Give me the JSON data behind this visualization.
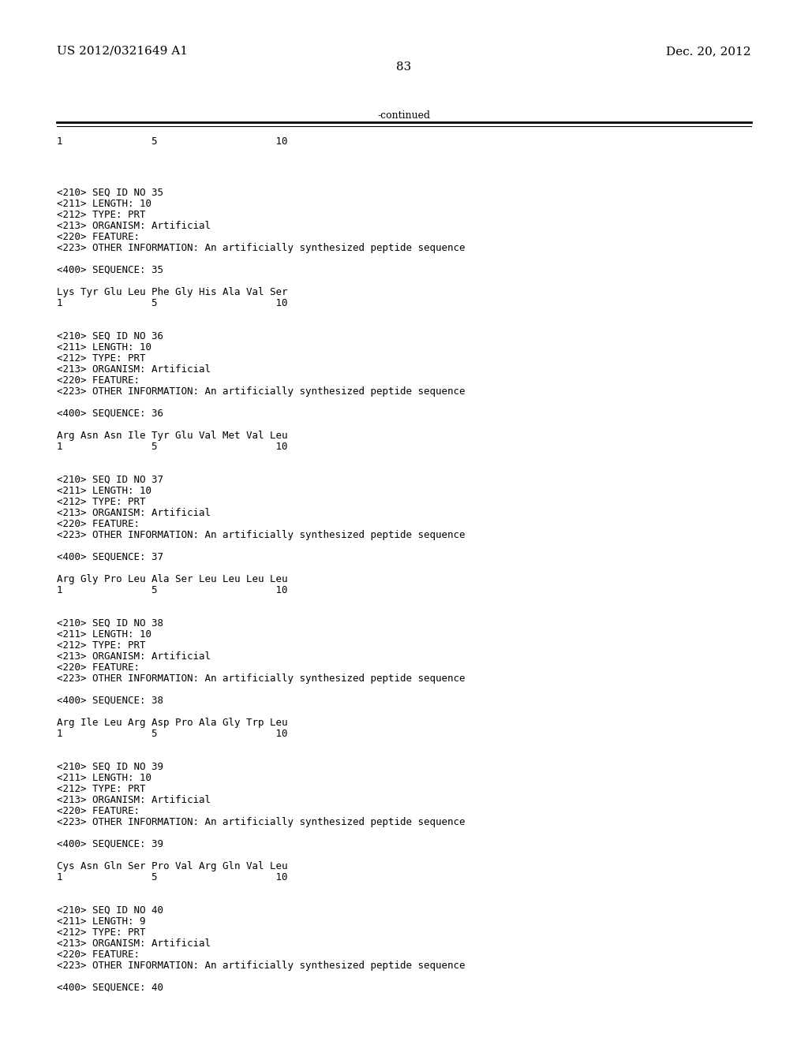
{
  "header_left": "US 2012/0321649 A1",
  "header_right": "Dec. 20, 2012",
  "page_number": "83",
  "continued_text": "-continued",
  "bg_color": "#ffffff",
  "text_color": "#000000",
  "font_size_header": 11,
  "font_size_body": 9,
  "sections": [
    {
      "seq_id": "35",
      "length": "10",
      "type": "PRT",
      "organism": "Artificial",
      "sequence_line": "Lys Tyr Glu Leu Phe Gly His Ala Val Ser",
      "ruler": "1               5                    10"
    },
    {
      "seq_id": "36",
      "length": "10",
      "type": "PRT",
      "organism": "Artificial",
      "sequence_line": "Arg Asn Asn Ile Tyr Glu Val Met Val Leu",
      "ruler": "1               5                    10"
    },
    {
      "seq_id": "37",
      "length": "10",
      "type": "PRT",
      "organism": "Artificial",
      "sequence_line": "Arg Gly Pro Leu Ala Ser Leu Leu Leu Leu",
      "ruler": "1               5                    10"
    },
    {
      "seq_id": "38",
      "length": "10",
      "type": "PRT",
      "organism": "Artificial",
      "sequence_line": "Arg Ile Leu Arg Asp Pro Ala Gly Trp Leu",
      "ruler": "1               5                    10"
    },
    {
      "seq_id": "39",
      "length": "10",
      "type": "PRT",
      "organism": "Artificial",
      "sequence_line": "Cys Asn Gln Ser Pro Val Arg Gln Val Leu",
      "ruler": "1               5                    10"
    },
    {
      "seq_id": "40",
      "length": "9",
      "type": "PRT",
      "organism": "Artificial",
      "sequence_line": "",
      "ruler": ""
    }
  ]
}
